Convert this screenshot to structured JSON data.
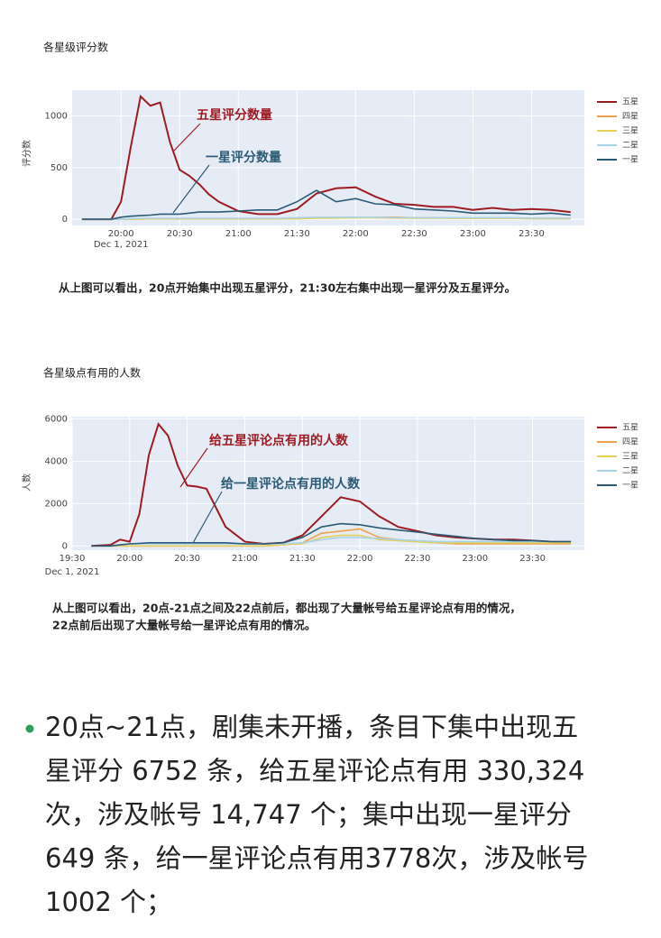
{
  "chart_data": [
    {
      "type": "line",
      "title": "各星级评分数",
      "y_label": "评分数",
      "x_date_label": "Dec 1, 2021",
      "x": [
        "19:40",
        "19:50",
        "19:55",
        "20:00",
        "20:05",
        "20:10",
        "20:15",
        "20:20",
        "20:25",
        "20:30",
        "20:35",
        "20:40",
        "20:45",
        "20:50",
        "21:00",
        "21:10",
        "21:20",
        "21:30",
        "21:40",
        "21:50",
        "22:00",
        "22:10",
        "22:20",
        "22:30",
        "22:40",
        "22:50",
        "23:00",
        "23:10",
        "23:20",
        "23:30",
        "23:40",
        "23:50"
      ],
      "xlim": [
        "19:35",
        "23:57"
      ],
      "xticks": [
        "20:00",
        "20:30",
        "21:00",
        "21:30",
        "22:00",
        "22:30",
        "23:00",
        "23:30"
      ],
      "ylim": [
        -60,
        1250
      ],
      "yticks": [
        0,
        500,
        1000
      ],
      "grid": true,
      "series": [
        {
          "name": "五星",
          "color": "#9e1b22",
          "values": [
            0,
            0,
            0,
            170,
            700,
            1190,
            1100,
            1130,
            750,
            480,
            420,
            340,
            240,
            170,
            80,
            50,
            50,
            100,
            250,
            300,
            310,
            220,
            150,
            140,
            120,
            120,
            90,
            110,
            90,
            100,
            90,
            70
          ]
        },
        {
          "name": "四星",
          "color": "#f0a050",
          "values": [
            0,
            0,
            0,
            0,
            0,
            5,
            5,
            5,
            5,
            5,
            5,
            5,
            5,
            5,
            5,
            5,
            5,
            10,
            15,
            20,
            20,
            20,
            20,
            15,
            15,
            10,
            10,
            10,
            10,
            10,
            10,
            10
          ]
        },
        {
          "name": "三星",
          "color": "#e6cf5a",
          "values": [
            0,
            0,
            0,
            0,
            0,
            0,
            5,
            5,
            5,
            5,
            5,
            5,
            5,
            5,
            5,
            5,
            5,
            5,
            10,
            10,
            15,
            15,
            10,
            10,
            10,
            10,
            10,
            10,
            10,
            5,
            5,
            5
          ]
        },
        {
          "name": "二星",
          "color": "#a8d4e8",
          "values": [
            0,
            0,
            0,
            0,
            5,
            10,
            10,
            10,
            10,
            10,
            10,
            10,
            10,
            10,
            10,
            10,
            10,
            15,
            20,
            20,
            20,
            20,
            15,
            15,
            15,
            15,
            15,
            15,
            15,
            10,
            10,
            10
          ]
        },
        {
          "name": "一星",
          "color": "#2a5a75",
          "values": [
            0,
            0,
            0,
            20,
            30,
            35,
            40,
            50,
            50,
            50,
            60,
            70,
            70,
            70,
            80,
            90,
            90,
            170,
            280,
            170,
            200,
            150,
            140,
            100,
            90,
            80,
            60,
            60,
            60,
            50,
            60,
            40
          ]
        }
      ],
      "annotations": [
        "五星评分数量",
        "一星评分数量"
      ]
    },
    {
      "type": "line",
      "title": "各星级点有用的人数",
      "y_label": "人数",
      "x_date_label": "Dec 1, 2021",
      "x": [
        "19:40",
        "19:50",
        "19:55",
        "20:00",
        "20:05",
        "20:10",
        "20:15",
        "20:20",
        "20:25",
        "20:30",
        "20:35",
        "20:40",
        "20:45",
        "20:50",
        "21:00",
        "21:10",
        "21:20",
        "21:30",
        "21:40",
        "21:50",
        "22:00",
        "22:10",
        "22:20",
        "22:30",
        "22:40",
        "22:50",
        "23:00",
        "23:10",
        "23:20",
        "23:30",
        "23:40",
        "23:50"
      ],
      "xlim": [
        "19:30",
        "23:57"
      ],
      "xticks": [
        "19:30",
        "20:00",
        "20:30",
        "21:00",
        "21:30",
        "22:00",
        "22:30",
        "23:00",
        "23:30"
      ],
      "ylim": [
        -200,
        6100
      ],
      "yticks": [
        0,
        2000,
        4000,
        6000
      ],
      "grid": true,
      "series": [
        {
          "name": "五星",
          "color": "#9e1b22",
          "values": [
            0,
            50,
            300,
            200,
            1500,
            4300,
            5750,
            5200,
            3800,
            2850,
            2800,
            2700,
            1800,
            900,
            200,
            100,
            150,
            500,
            1400,
            2300,
            2100,
            1400,
            900,
            700,
            500,
            400,
            350,
            300,
            300,
            250,
            200,
            200
          ]
        },
        {
          "name": "四星",
          "color": "#f0a050",
          "values": [
            0,
            0,
            0,
            0,
            0,
            0,
            0,
            0,
            0,
            0,
            0,
            0,
            0,
            0,
            0,
            0,
            50,
            150,
            600,
            700,
            800,
            400,
            300,
            200,
            150,
            100,
            100,
            100,
            100,
            100,
            100,
            100
          ]
        },
        {
          "name": "三星",
          "color": "#e6cf5a",
          "values": [
            0,
            0,
            0,
            0,
            0,
            0,
            0,
            0,
            0,
            0,
            0,
            0,
            0,
            0,
            0,
            0,
            50,
            100,
            400,
            500,
            500,
            300,
            250,
            200,
            150,
            150,
            150,
            150,
            150,
            150,
            150,
            150
          ]
        },
        {
          "name": "二星",
          "color": "#a8d4e8",
          "values": [
            0,
            0,
            50,
            100,
            100,
            100,
            100,
            100,
            100,
            100,
            100,
            100,
            100,
            100,
            100,
            100,
            100,
            150,
            300,
            400,
            400,
            350,
            300,
            250,
            200,
            200,
            200,
            200,
            200,
            200,
            200,
            200
          ]
        },
        {
          "name": "一星",
          "color": "#2a5a75",
          "values": [
            0,
            0,
            50,
            100,
            120,
            150,
            150,
            150,
            150,
            150,
            150,
            150,
            150,
            150,
            100,
            100,
            150,
            400,
            900,
            1050,
            1000,
            850,
            750,
            650,
            550,
            450,
            350,
            300,
            250,
            250,
            200,
            200
          ]
        }
      ],
      "annotations": [
        "给五星评论点有用的人数",
        "给一星评论点有用的人数"
      ]
    }
  ],
  "captions": [
    [
      "从上图可以看出，20点开始集中出现五星评分，21:30左右集中出现一星评分及五星评分。"
    ],
    [
      "从上图可以看出，20点-21点之间及22点前后，都出现了大量帐号给五星评论点有用的情况，",
      "22点前后出现了大量帐号给一星评论点有用的情况。"
    ]
  ],
  "bullet": {
    "lines": [
      "20点~21点，剧集未开播，条目下集中出现五",
      "星评分 6752 条，给五星评论点有用 330,324",
      "次，涉及帐号 14,747 个；集中出现一星评分",
      "649 条，给一星评论点有用3778次，涉及帐号",
      "1002 个；"
    ]
  }
}
